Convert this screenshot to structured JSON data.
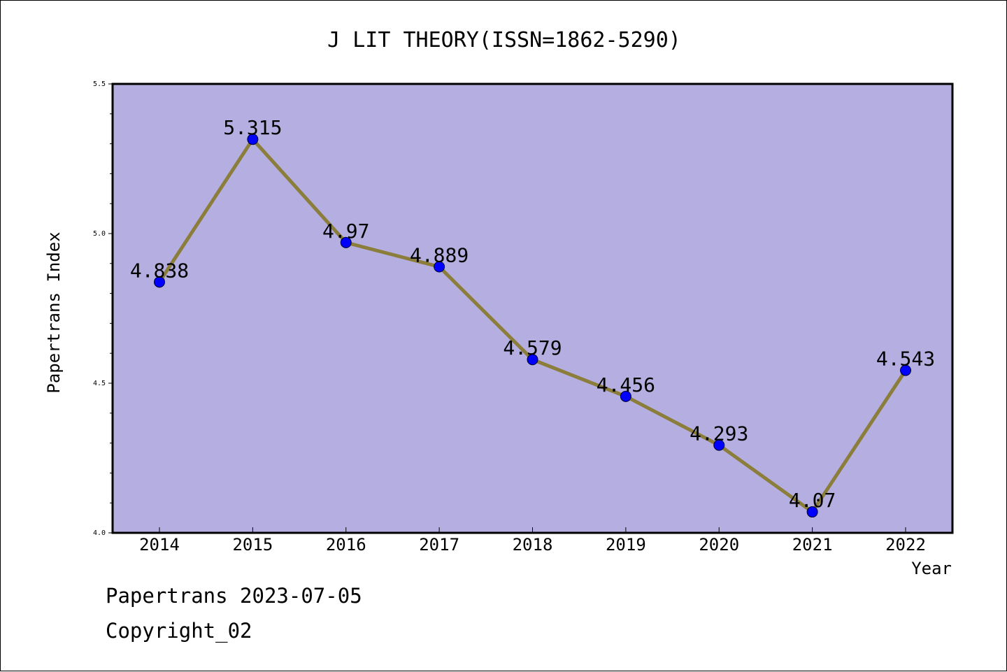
{
  "chart_data": {
    "type": "line",
    "title": "J LIT THEORY(ISSN=1862-5290)",
    "xlabel": "Year",
    "ylabel": "Papertrans Index",
    "categories": [
      "2014",
      "2015",
      "2016",
      "2017",
      "2018",
      "2019",
      "2020",
      "2021",
      "2022"
    ],
    "values": [
      4.838,
      5.315,
      4.97,
      4.889,
      4.579,
      4.456,
      4.293,
      4.07,
      4.543
    ],
    "value_labels": [
      "4.838",
      "5.315",
      "4.97",
      "4.889",
      "4.579",
      "4.456",
      "4.293",
      "4.07",
      "4.543"
    ],
    "ylim": [
      4.0,
      5.5
    ],
    "yticks": [
      "4.0",
      "4.5",
      "5.0",
      "5.5"
    ],
    "grid": false,
    "legend": "none",
    "colors": {
      "plot_background": "#b5aee1",
      "line": "#8b7d3a",
      "marker": "#0000ff",
      "axis": "#000000"
    }
  },
  "footer": {
    "date_line": "Papertrans 2023-07-05",
    "copyright_line": "Copyright_02"
  }
}
